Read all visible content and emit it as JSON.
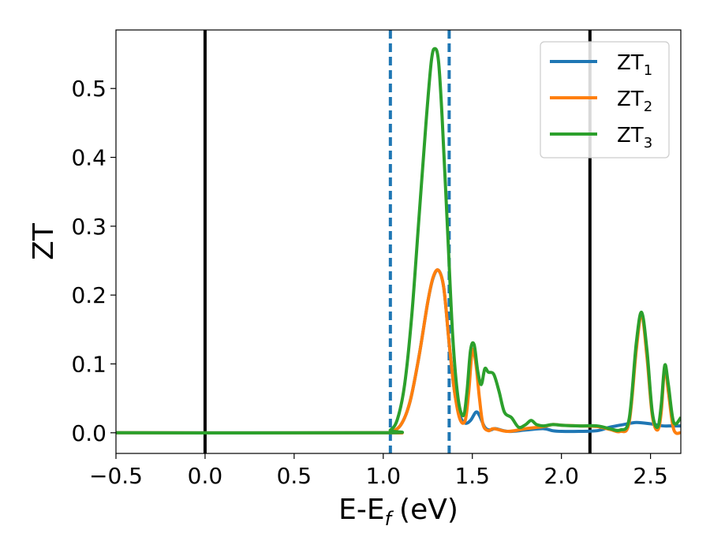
{
  "chart_data": {
    "type": "line",
    "xlabel": "E-E",
    "xlabel_sub": "f",
    "xlabel_unit": "(eV)",
    "ylabel": "ZT",
    "xlim": [
      -0.5,
      2.67
    ],
    "ylim": [
      -0.03,
      0.585
    ],
    "x_ticks": [
      -0.5,
      0.0,
      0.5,
      1.0,
      1.5,
      2.0,
      2.5
    ],
    "x_tick_labels": [
      "−0.5",
      "0.0",
      "0.5",
      "1.0",
      "1.5",
      "2.0",
      "2.5"
    ],
    "y_ticks": [
      0.0,
      0.1,
      0.2,
      0.3,
      0.4,
      0.5
    ],
    "y_tick_labels": [
      "0.0",
      "0.1",
      "0.2",
      "0.3",
      "0.4",
      "0.5"
    ],
    "grid": false,
    "legend_position": "top-right",
    "vertical_lines": [
      {
        "x": 0.0,
        "color": "#000000",
        "style": "solid"
      },
      {
        "x": 2.16,
        "color": "#000000",
        "style": "solid"
      },
      {
        "x": 1.04,
        "color": "#1f77b4",
        "style": "dashed"
      },
      {
        "x": 1.37,
        "color": "#1f77b4",
        "style": "dashed"
      }
    ],
    "series": [
      {
        "name": "ZT",
        "sub": "1",
        "color": "#1f77b4",
        "points": [
          [
            -0.5,
            0
          ],
          [
            0.98,
            0
          ],
          [
            1.04,
            0.001
          ],
          [
            1.1,
            0.012
          ],
          [
            1.15,
            0.045
          ],
          [
            1.2,
            0.11
          ],
          [
            1.25,
            0.19
          ],
          [
            1.28,
            0.225
          ],
          [
            1.31,
            0.236
          ],
          [
            1.34,
            0.21
          ],
          [
            1.37,
            0.13
          ],
          [
            1.4,
            0.06
          ],
          [
            1.43,
            0.025
          ],
          [
            1.46,
            0.014
          ],
          [
            1.49,
            0.018
          ],
          [
            1.52,
            0.03
          ],
          [
            1.54,
            0.025
          ],
          [
            1.57,
            0.008
          ],
          [
            1.6,
            0.004
          ],
          [
            1.63,
            0.006
          ],
          [
            1.7,
            0.002
          ],
          [
            1.8,
            0.004
          ],
          [
            1.9,
            0.006
          ],
          [
            1.95,
            0.003
          ],
          [
            2.0,
            0.002
          ],
          [
            2.1,
            0.002
          ],
          [
            2.2,
            0.003
          ],
          [
            2.27,
            0.008
          ],
          [
            2.35,
            0.012
          ],
          [
            2.42,
            0.015
          ],
          [
            2.5,
            0.013
          ],
          [
            2.57,
            0.01
          ],
          [
            2.62,
            0.01
          ],
          [
            2.67,
            0.01
          ]
        ]
      },
      {
        "name": "ZT",
        "sub": "2",
        "color": "#ff7f0e",
        "points": [
          [
            -0.5,
            0
          ],
          [
            0.98,
            0
          ],
          [
            1.04,
            0.001
          ],
          [
            1.1,
            0.012
          ],
          [
            1.15,
            0.045
          ],
          [
            1.2,
            0.11
          ],
          [
            1.25,
            0.19
          ],
          [
            1.28,
            0.226
          ],
          [
            1.31,
            0.236
          ],
          [
            1.34,
            0.21
          ],
          [
            1.37,
            0.13
          ],
          [
            1.4,
            0.06
          ],
          [
            1.43,
            0.02
          ],
          [
            1.46,
            0.018
          ],
          [
            1.48,
            0.06
          ],
          [
            1.5,
            0.12
          ],
          [
            1.52,
            0.1
          ],
          [
            1.54,
            0.05
          ],
          [
            1.56,
            0.012
          ],
          [
            1.59,
            0.003
          ],
          [
            1.62,
            0.006
          ],
          [
            1.7,
            0.002
          ],
          [
            1.8,
            0.006
          ],
          [
            1.9,
            0.009
          ],
          [
            1.95,
            0.012
          ],
          [
            2.0,
            0.011
          ],
          [
            2.1,
            0.01
          ],
          [
            2.2,
            0.009
          ],
          [
            2.27,
            0.005
          ],
          [
            2.33,
            0.002
          ],
          [
            2.38,
            0.015
          ],
          [
            2.42,
            0.12
          ],
          [
            2.45,
            0.172
          ],
          [
            2.48,
            0.11
          ],
          [
            2.51,
            0.025
          ],
          [
            2.54,
            0.004
          ],
          [
            2.56,
            0.03
          ],
          [
            2.58,
            0.095
          ],
          [
            2.6,
            0.06
          ],
          [
            2.63,
            0.005
          ],
          [
            2.67,
            0.0
          ]
        ]
      },
      {
        "name": "ZT",
        "sub": "3",
        "color": "#2ca02c",
        "points": [
          [
            -0.5,
            0
          ],
          [
            0.98,
            0
          ],
          [
            1.04,
            0.004
          ],
          [
            1.08,
            0.02
          ],
          [
            1.12,
            0.07
          ],
          [
            1.16,
            0.17
          ],
          [
            1.2,
            0.31
          ],
          [
            1.24,
            0.45
          ],
          [
            1.27,
            0.54
          ],
          [
            1.29,
            0.558
          ],
          [
            1.31,
            0.54
          ],
          [
            1.33,
            0.46
          ],
          [
            1.36,
            0.3
          ],
          [
            1.39,
            0.14
          ],
          [
            1.42,
            0.05
          ],
          [
            1.45,
            0.025
          ],
          [
            1.47,
            0.06
          ],
          [
            1.49,
            0.12
          ],
          [
            1.51,
            0.128
          ],
          [
            1.53,
            0.09
          ],
          [
            1.55,
            0.07
          ],
          [
            1.57,
            0.093
          ],
          [
            1.59,
            0.088
          ],
          [
            1.62,
            0.085
          ],
          [
            1.65,
            0.06
          ],
          [
            1.68,
            0.03
          ],
          [
            1.72,
            0.022
          ],
          [
            1.76,
            0.008
          ],
          [
            1.8,
            0.012
          ],
          [
            1.83,
            0.018
          ],
          [
            1.86,
            0.012
          ],
          [
            1.9,
            0.01
          ],
          [
            1.95,
            0.012
          ],
          [
            2.0,
            0.011
          ],
          [
            2.1,
            0.01
          ],
          [
            2.2,
            0.01
          ],
          [
            2.27,
            0.006
          ],
          [
            2.33,
            0.004
          ],
          [
            2.38,
            0.02
          ],
          [
            2.42,
            0.13
          ],
          [
            2.45,
            0.175
          ],
          [
            2.48,
            0.12
          ],
          [
            2.51,
            0.03
          ],
          [
            2.54,
            0.008
          ],
          [
            2.56,
            0.04
          ],
          [
            2.58,
            0.098
          ],
          [
            2.6,
            0.07
          ],
          [
            2.63,
            0.015
          ],
          [
            2.67,
            0.022
          ]
        ]
      }
    ]
  }
}
